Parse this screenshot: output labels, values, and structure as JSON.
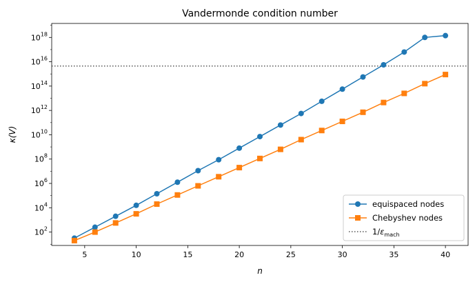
{
  "chart_data": {
    "type": "line",
    "title": "Vandermonde condition number",
    "xlabel": "n",
    "ylabel": "κ(V)",
    "y_scale": "log",
    "xlim": [
      1.8,
      42.2
    ],
    "ylim_log10": [
      0.9,
      19.15
    ],
    "x_ticks": [
      5,
      10,
      15,
      20,
      25,
      30,
      35,
      40
    ],
    "y_tick_exponents": [
      2,
      4,
      6,
      8,
      10,
      12,
      14,
      16,
      18
    ],
    "y_tick_base": "10",
    "legend_position": "lower right",
    "x": [
      4,
      6,
      8,
      10,
      12,
      14,
      16,
      18,
      20,
      22,
      24,
      26,
      28,
      30,
      32,
      34,
      36,
      38,
      40
    ],
    "series": [
      {
        "name": "equispaced nodes",
        "color": "#1f77b4",
        "marker": "circle",
        "log10_values": [
          1.5,
          2.4,
          3.3,
          4.2,
          5.15,
          6.1,
          7.05,
          7.95,
          8.9,
          9.85,
          10.8,
          11.75,
          12.75,
          13.75,
          14.75,
          15.75,
          16.8,
          18.0,
          18.15
        ]
      },
      {
        "name": "Chebyshev nodes",
        "color": "#ff7f0e",
        "marker": "square",
        "log10_values": [
          1.3,
          2.0,
          2.75,
          3.5,
          4.3,
          5.05,
          5.8,
          6.55,
          7.3,
          8.05,
          8.8,
          9.6,
          10.35,
          11.1,
          11.85,
          12.65,
          13.4,
          14.2,
          14.95
        ]
      }
    ],
    "reference_line": {
      "name_prefix": "1/",
      "name_symbol": "ε",
      "name_subscript": "mach",
      "log10_value": 15.65,
      "color": "#555555",
      "style": "dotted"
    }
  }
}
